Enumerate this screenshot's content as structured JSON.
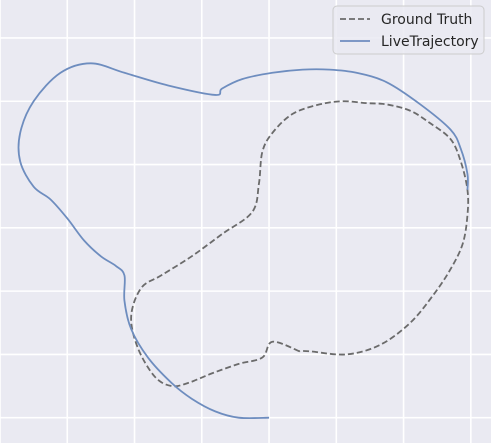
{
  "chart_data": {
    "type": "line",
    "title": "",
    "xlabel": "",
    "ylabel": "",
    "xlim": [
      0,
      7.3
    ],
    "ylim": [
      -6.4,
      0.6
    ],
    "grid": true,
    "tick_labels_visible": false,
    "legend_position": "top-right",
    "background": "#eaeaf2",
    "grid_color": "#ffffff",
    "series": [
      {
        "name": "Ground Truth",
        "style": "dashed",
        "color": "#6b6b6b",
        "points": [
          [
            4.45,
            -4.95
          ],
          [
            4.05,
            -4.8
          ],
          [
            3.9,
            -5.05
          ],
          [
            3.55,
            -5.15
          ],
          [
            3.15,
            -5.3
          ],
          [
            2.8,
            -5.45
          ],
          [
            2.55,
            -5.5
          ],
          [
            2.3,
            -5.35
          ],
          [
            2.05,
            -4.9
          ],
          [
            1.95,
            -4.4
          ],
          [
            2.1,
            -3.95
          ],
          [
            2.4,
            -3.75
          ],
          [
            2.85,
            -3.45
          ],
          [
            3.3,
            -3.1
          ],
          [
            3.75,
            -2.75
          ],
          [
            3.85,
            -2.3
          ],
          [
            3.9,
            -1.8
          ],
          [
            4.05,
            -1.5
          ],
          [
            4.35,
            -1.2
          ],
          [
            4.75,
            -1.05
          ],
          [
            5.1,
            -1.0
          ],
          [
            5.45,
            -1.03
          ],
          [
            5.75,
            -1.05
          ],
          [
            6.1,
            -1.15
          ],
          [
            6.4,
            -1.35
          ],
          [
            6.7,
            -1.6
          ],
          [
            6.85,
            -1.95
          ],
          [
            6.95,
            -2.4
          ],
          [
            6.95,
            -2.8
          ],
          [
            6.88,
            -3.25
          ],
          [
            6.7,
            -3.65
          ],
          [
            6.45,
            -4.05
          ],
          [
            6.1,
            -4.5
          ],
          [
            5.65,
            -4.85
          ],
          [
            5.15,
            -5.0
          ],
          [
            4.6,
            -4.95
          ],
          [
            4.45,
            -4.95
          ]
        ]
      },
      {
        "name": "LiveTrajectory",
        "style": "solid",
        "color": "#6e8dbf",
        "points": [
          [
            4.0,
            -6.0
          ],
          [
            3.55,
            -6.0
          ],
          [
            3.2,
            -5.9
          ],
          [
            2.85,
            -5.7
          ],
          [
            2.55,
            -5.45
          ],
          [
            2.2,
            -5.05
          ],
          [
            1.95,
            -4.6
          ],
          [
            1.85,
            -4.15
          ],
          [
            1.85,
            -3.75
          ],
          [
            1.72,
            -3.6
          ],
          [
            1.5,
            -3.45
          ],
          [
            1.25,
            -3.2
          ],
          [
            1.0,
            -2.85
          ],
          [
            0.75,
            -2.55
          ],
          [
            0.5,
            -2.35
          ],
          [
            0.3,
            -1.95
          ],
          [
            0.3,
            -1.5
          ],
          [
            0.5,
            -1.0
          ],
          [
            0.9,
            -0.55
          ],
          [
            1.35,
            -0.4
          ],
          [
            1.85,
            -0.55
          ],
          [
            2.5,
            -0.75
          ],
          [
            3.2,
            -0.9
          ],
          [
            3.3,
            -0.8
          ],
          [
            3.6,
            -0.65
          ],
          [
            4.05,
            -0.55
          ],
          [
            4.5,
            -0.5
          ],
          [
            4.9,
            -0.5
          ],
          [
            5.3,
            -0.55
          ],
          [
            5.75,
            -0.7
          ],
          [
            6.25,
            -1.05
          ],
          [
            6.7,
            -1.45
          ],
          [
            6.85,
            -1.75
          ],
          [
            6.95,
            -2.15
          ],
          [
            6.95,
            -2.4
          ]
        ]
      }
    ]
  }
}
